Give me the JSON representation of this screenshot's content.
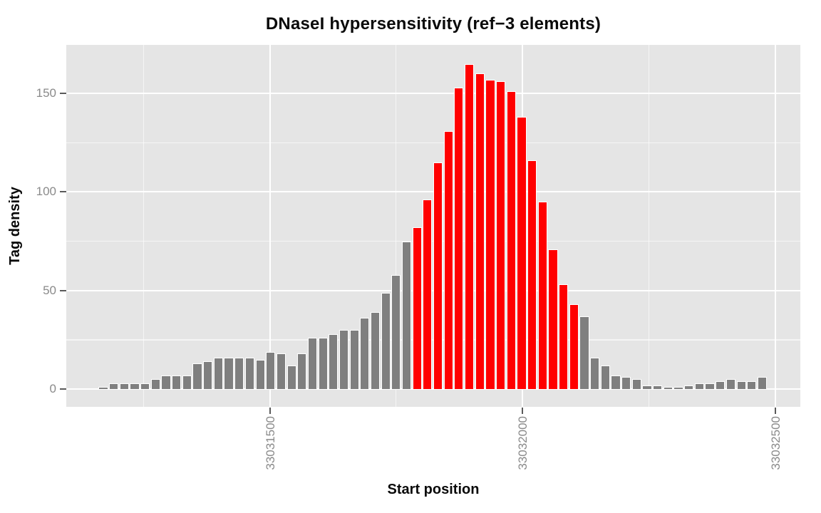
{
  "chart_data": {
    "type": "bar",
    "title": "DNaseI hypersensitivity (ref−3 elements)",
    "xlabel": "Start position",
    "ylabel": "Tag density",
    "x_axis": {
      "ticks": [
        33031500,
        33032000,
        33032500
      ],
      "tick_labels": [
        "33031500",
        "33032000",
        "33032500"
      ],
      "minor_ticks": [
        33031250,
        33031750,
        33032250
      ],
      "range": [
        33031097,
        33032550
      ],
      "tick_label_rotation_deg": 90
    },
    "y_axis": {
      "ticks": [
        0,
        50,
        100,
        150
      ],
      "tick_labels": [
        "0",
        "50",
        "100",
        "150"
      ],
      "minor_ticks": [
        25,
        75,
        125,
        175
      ],
      "range": [
        -9,
        174.6
      ]
    },
    "grid": "on",
    "legend": "none",
    "bins": {
      "first_bin_start_bp": 33031160,
      "bin_size_bp": 20.7
    },
    "values": [
      1,
      3,
      3,
      3,
      3,
      5,
      7,
      7,
      7,
      13,
      14,
      16,
      16,
      16,
      16,
      15,
      19,
      18,
      12,
      18,
      26,
      26,
      28,
      30,
      30,
      36,
      39,
      49,
      58,
      75,
      82,
      96,
      115,
      131,
      153,
      165,
      160,
      157,
      156,
      151,
      138,
      116,
      95,
      71,
      53,
      43,
      37,
      16,
      12,
      7,
      6,
      5,
      2,
      2,
      1,
      1,
      2,
      3,
      3,
      4,
      5,
      4,
      4,
      6
    ],
    "highlight": {
      "first_index": 30,
      "last_index": 45,
      "approx_start_bp": 33031780,
      "approx_end_bp": 33032110,
      "color": "#FF0000"
    },
    "colors": {
      "bar": "#7F7F7F",
      "highlight": "#FF0000",
      "panel_background": "#E5E5E5",
      "grid": "#FFFFFF",
      "axis_text": "#8A8A8A",
      "tick_mark": "#5A5A5A",
      "title_text": "#0A0A0A"
    }
  }
}
